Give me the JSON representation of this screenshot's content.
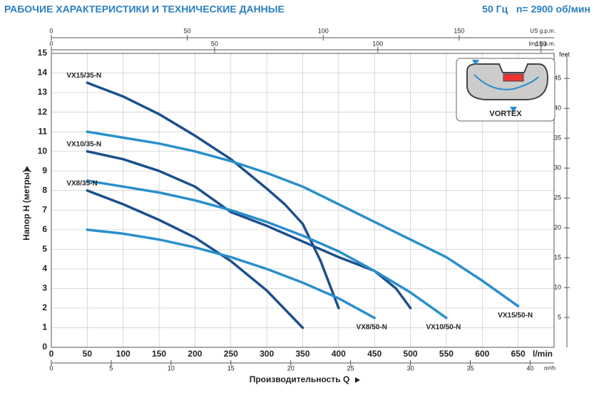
{
  "chart_data": {
    "type": "line",
    "title": "РАБОЧИЕ ХАРАКТЕРИСТИКИ И ТЕХНИЧЕСКИЕ ДАННЫЕ",
    "subtitle": "50 Гц   n= 2900 об/мин",
    "x_label": "Производительность Q",
    "y_label": "Напор H (метры)",
    "x_unit": "l/min",
    "xlim": [
      0,
      700
    ],
    "xticks": [
      0,
      50,
      100,
      150,
      200,
      250,
      300,
      350,
      400,
      450,
      500,
      550,
      600,
      650
    ],
    "ylim": [
      0,
      15
    ],
    "yticks": [
      0,
      1,
      2,
      3,
      4,
      5,
      6,
      7,
      8,
      9,
      10,
      11,
      12,
      13,
      14,
      15
    ],
    "grid": true,
    "m3h_axis": {
      "unit": "m³/h",
      "lim": [
        0,
        42
      ],
      "ticks": [
        0,
        5,
        10,
        15,
        20,
        25,
        30,
        35,
        40
      ]
    },
    "us_gpm_axis": {
      "unit": "US g.p.m.",
      "lim": [
        0,
        184.9
      ],
      "ticks": [
        0,
        50,
        100,
        150
      ]
    },
    "imp_gpm_axis": {
      "unit": "Imp g.p.m.",
      "lim": [
        0,
        154
      ],
      "ticks": [
        0,
        50,
        100,
        150
      ]
    },
    "feet_axis": {
      "unit": "feet",
      "lim": [
        0,
        49.2
      ],
      "ticks": [
        5,
        10,
        15,
        20,
        25,
        30,
        35,
        40,
        45
      ]
    },
    "inset_label": "VORTEX",
    "series": [
      {
        "name": "VX15/35-N",
        "color": "#1c4f8c",
        "x": [
          50,
          100,
          150,
          200,
          250,
          300,
          325,
          350,
          375,
          400
        ],
        "values": [
          13.5,
          12.8,
          11.9,
          10.8,
          9.6,
          8.1,
          7.3,
          6.3,
          4.4,
          2.0
        ]
      },
      {
        "name": "VX15/50-N",
        "color": "#2a8fcc",
        "x": [
          50,
          100,
          150,
          200,
          250,
          300,
          350,
          400,
          450,
          500,
          550,
          600,
          650
        ],
        "values": [
          11.0,
          10.7,
          10.4,
          10.0,
          9.5,
          8.9,
          8.2,
          7.3,
          6.4,
          5.5,
          4.6,
          3.4,
          2.1
        ]
      },
      {
        "name": "VX10/35-N",
        "color": "#1c4f8c",
        "x": [
          50,
          100,
          150,
          200,
          250,
          300,
          350,
          400,
          450,
          480,
          500
        ],
        "values": [
          10.0,
          9.6,
          9.0,
          8.2,
          6.9,
          6.2,
          5.4,
          4.6,
          3.9,
          3.0,
          2.0
        ]
      },
      {
        "name": "VX10/50-N",
        "color": "#2a8fcc",
        "x": [
          50,
          100,
          150,
          200,
          250,
          300,
          350,
          400,
          450,
          500,
          550
        ],
        "values": [
          8.5,
          8.2,
          7.9,
          7.5,
          7.0,
          6.4,
          5.7,
          4.9,
          3.9,
          2.8,
          1.5
        ]
      },
      {
        "name": "VX8/35-N",
        "color": "#1c4f8c",
        "x": [
          50,
          100,
          150,
          200,
          250,
          300,
          350
        ],
        "values": [
          8.0,
          7.3,
          6.5,
          5.6,
          4.4,
          2.9,
          1.0
        ]
      },
      {
        "name": "VX8/50-N",
        "color": "#2a8fcc",
        "x": [
          50,
          100,
          150,
          200,
          250,
          300,
          350,
          400,
          450
        ],
        "values": [
          6.0,
          5.8,
          5.5,
          5.1,
          4.6,
          4.0,
          3.3,
          2.5,
          1.5
        ]
      }
    ]
  }
}
